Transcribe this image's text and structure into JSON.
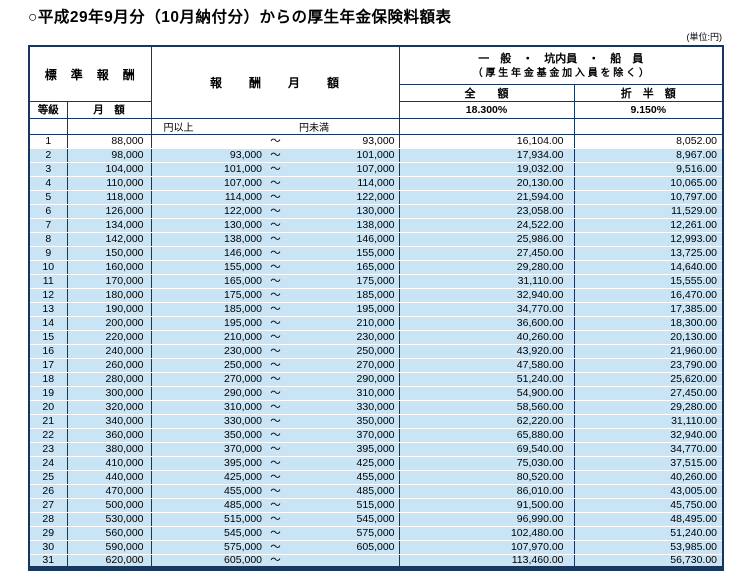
{
  "title": "○平成29年9月分（10月納付分）からの厚生年金保険料額表",
  "unit_note": "(単位:円)",
  "colors": {
    "grid_border": "#17375e",
    "row_stripe": "#c9e4f5"
  },
  "table": {
    "header": {
      "standard_remuneration": "標　準　報　酬",
      "grade": "等級",
      "monthly_amount": "月　額",
      "remuneration_monthly": "報　　酬　　月　　額",
      "group_line1": "一　般　・　坑内員　・　船　員",
      "group_line2": "（ 厚 生 年 金 基 金 加 入 員 を 除 く ）",
      "full_amount": "全　　額",
      "half_amount": "折　半　額",
      "full_rate": "18.300%",
      "half_rate": "9.150%",
      "yen_over": "円以上",
      "tilde": "～",
      "yen_under": "円未満"
    },
    "rows": [
      [
        "1",
        "88,000",
        "",
        "93,000",
        "16,104.00",
        "8,052.00"
      ],
      [
        "2",
        "98,000",
        "93,000",
        "101,000",
        "17,934.00",
        "8,967.00"
      ],
      [
        "3",
        "104,000",
        "101,000",
        "107,000",
        "19,032.00",
        "9,516.00"
      ],
      [
        "4",
        "110,000",
        "107,000",
        "114,000",
        "20,130.00",
        "10,065.00"
      ],
      [
        "5",
        "118,000",
        "114,000",
        "122,000",
        "21,594.00",
        "10,797.00"
      ],
      [
        "6",
        "126,000",
        "122,000",
        "130,000",
        "23,058.00",
        "11,529.00"
      ],
      [
        "7",
        "134,000",
        "130,000",
        "138,000",
        "24,522.00",
        "12,261.00"
      ],
      [
        "8",
        "142,000",
        "138,000",
        "146,000",
        "25,986.00",
        "12,993.00"
      ],
      [
        "9",
        "150,000",
        "146,000",
        "155,000",
        "27,450.00",
        "13,725.00"
      ],
      [
        "10",
        "160,000",
        "155,000",
        "165,000",
        "29,280.00",
        "14,640.00"
      ],
      [
        "11",
        "170,000",
        "165,000",
        "175,000",
        "31,110.00",
        "15,555.00"
      ],
      [
        "12",
        "180,000",
        "175,000",
        "185,000",
        "32,940.00",
        "16,470.00"
      ],
      [
        "13",
        "190,000",
        "185,000",
        "195,000",
        "34,770.00",
        "17,385.00"
      ],
      [
        "14",
        "200,000",
        "195,000",
        "210,000",
        "36,600.00",
        "18,300.00"
      ],
      [
        "15",
        "220,000",
        "210,000",
        "230,000",
        "40,260.00",
        "20,130.00"
      ],
      [
        "16",
        "240,000",
        "230,000",
        "250,000",
        "43,920.00",
        "21,960.00"
      ],
      [
        "17",
        "260,000",
        "250,000",
        "270,000",
        "47,580.00",
        "23,790.00"
      ],
      [
        "18",
        "280,000",
        "270,000",
        "290,000",
        "51,240.00",
        "25,620.00"
      ],
      [
        "19",
        "300,000",
        "290,000",
        "310,000",
        "54,900.00",
        "27,450.00"
      ],
      [
        "20",
        "320,000",
        "310,000",
        "330,000",
        "58,560.00",
        "29,280.00"
      ],
      [
        "21",
        "340,000",
        "330,000",
        "350,000",
        "62,220.00",
        "31,110.00"
      ],
      [
        "22",
        "360,000",
        "350,000",
        "370,000",
        "65,880.00",
        "32,940.00"
      ],
      [
        "23",
        "380,000",
        "370,000",
        "395,000",
        "69,540.00",
        "34,770.00"
      ],
      [
        "24",
        "410,000",
        "395,000",
        "425,000",
        "75,030.00",
        "37,515.00"
      ],
      [
        "25",
        "440,000",
        "425,000",
        "455,000",
        "80,520.00",
        "40,260.00"
      ],
      [
        "26",
        "470,000",
        "455,000",
        "485,000",
        "86,010.00",
        "43,005.00"
      ],
      [
        "27",
        "500,000",
        "485,000",
        "515,000",
        "91,500.00",
        "45,750.00"
      ],
      [
        "28",
        "530,000",
        "515,000",
        "545,000",
        "96,990.00",
        "48,495.00"
      ],
      [
        "29",
        "560,000",
        "545,000",
        "575,000",
        "102,480.00",
        "51,240.00"
      ],
      [
        "30",
        "590,000",
        "575,000",
        "605,000",
        "107,970.00",
        "53,985.00"
      ],
      [
        "31",
        "620,000",
        "605,000",
        "",
        "113,460.00",
        "56,730.00"
      ]
    ]
  }
}
